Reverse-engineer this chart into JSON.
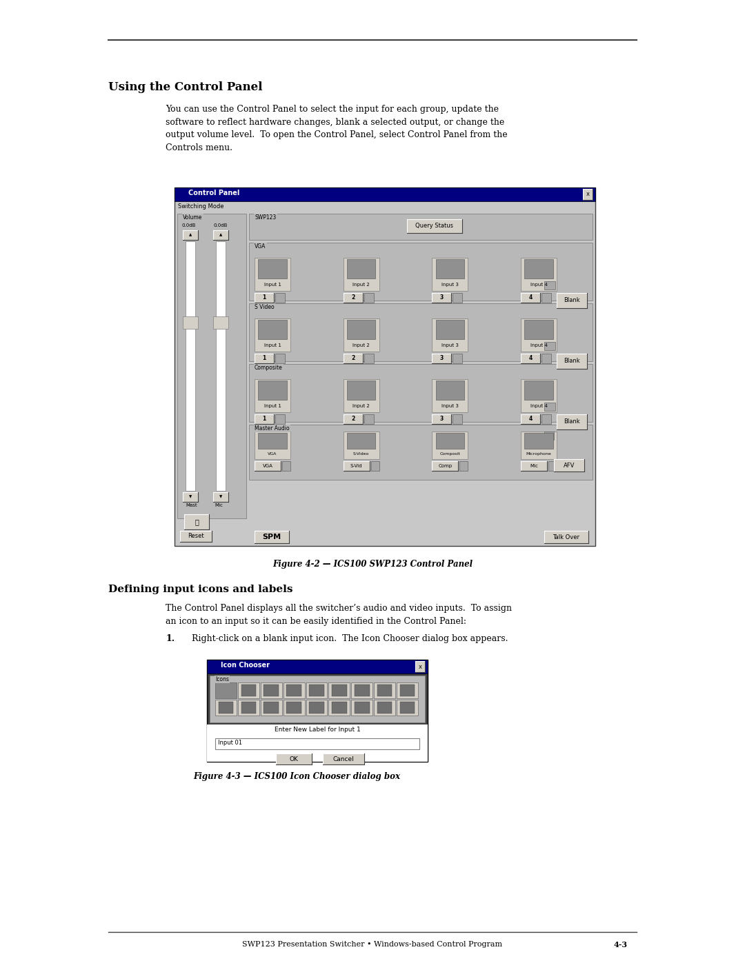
{
  "page_width": 10.8,
  "page_height": 13.97,
  "bg_color": "#ffffff",
  "section_title": "Using the Control Panel",
  "body_text": "You can use the Control Panel to select the input for each group, update the\nsoftware to reflect hardware changes, blank a selected output, or change the\noutput volume level.  To open the Control Panel, select Control Panel from the\nControls menu.",
  "fig1_caption": "Figure 4-2 — ICS100 SWP123 Control Panel",
  "fig2_caption": "Figure 4-3 — ICS100 Icon Chooser dialog box",
  "section2_title": "Defining input icons and labels",
  "body2_text": "The Control Panel displays all the switcher’s audio and video inputs.  To assign\nan icon to an input so it can be easily identified in the Control Panel:",
  "step1_num": "1.",
  "step1_text": "Right-click on a blank input icon.  The Icon Chooser dialog box appears.",
  "footer_text": "SWP123 Presentation Switcher • Windows-based Control Program",
  "footer_page": "4-3",
  "cp_win_color": "#c8c8c8",
  "cp_titlebar_color": "#000080",
  "cp_bg_color": "#b8b8b8",
  "white": "#ffffff",
  "black": "#000000",
  "gray_light": "#d4d0c8",
  "gray_med": "#a8a8a8",
  "gray_dark": "#808080",
  "icon_gray": "#909090"
}
